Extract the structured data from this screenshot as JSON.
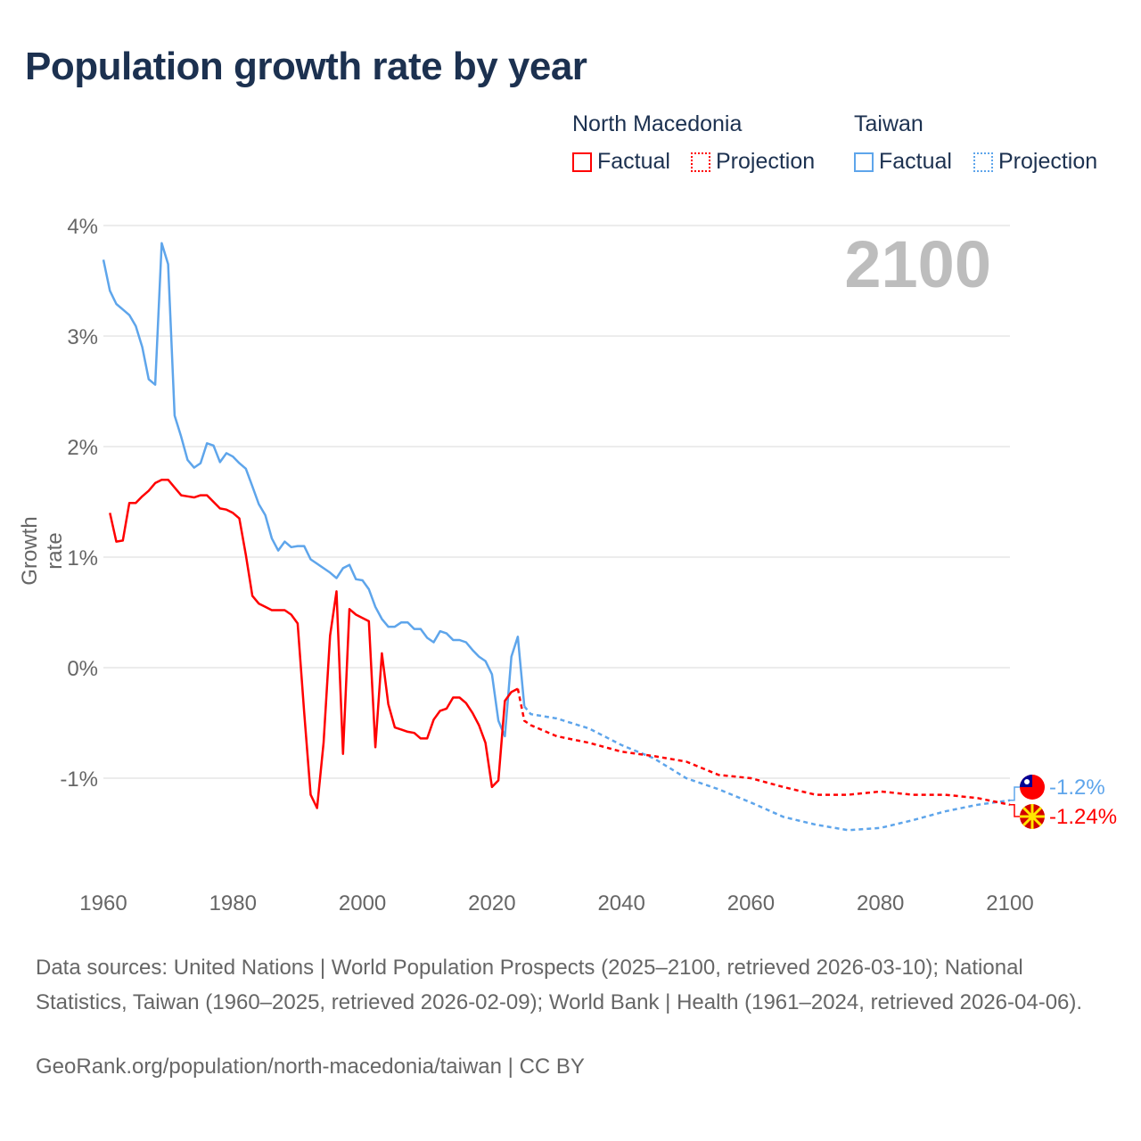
{
  "title": "Population growth rate by year",
  "legend": {
    "groups": [
      {
        "country": "North Macedonia",
        "factual": "Factual",
        "projection": "Projection",
        "color": "#ff0000"
      },
      {
        "country": "Taiwan",
        "factual": "Factual",
        "projection": "Projection",
        "color": "#5ea5eb"
      }
    ]
  },
  "footer": {
    "sources": "Data sources: United Nations | World Population Prospects (2025–2100, retrieved 2026-03-10); National Statistics, Taiwan (1960–2025, retrieved 2026-02-09); World Bank | Health (1961–2024, retrieved 2026-04-06).",
    "credit": "GeoRank.org/population/north-macedonia/taiwan | CC BY"
  },
  "chart_data": {
    "type": "line",
    "title": "Population growth rate by year",
    "ylabel": "Growth rate",
    "xlabel": "",
    "year_watermark": "2100",
    "xlim": [
      1960,
      2100
    ],
    "ylim": [
      -1.9,
      4.0
    ],
    "xticks": [
      1960,
      1980,
      2000,
      2020,
      2040,
      2060,
      2080,
      2100
    ],
    "yticks": [
      {
        "v": 4,
        "label": "4%"
      },
      {
        "v": 3,
        "label": "3%"
      },
      {
        "v": 2,
        "label": "2%"
      },
      {
        "v": 1,
        "label": "1%"
      },
      {
        "v": 0,
        "label": "0%"
      },
      {
        "v": -1,
        "label": "-1%"
      }
    ],
    "grid": true,
    "series": [
      {
        "name": "North Macedonia",
        "color": "#ff0000",
        "end_label": "-1.24%",
        "factual": {
          "x": [
            1961,
            1962,
            1963,
            1964,
            1965,
            1966,
            1967,
            1968,
            1969,
            1970,
            1971,
            1972,
            1973,
            1974,
            1975,
            1976,
            1977,
            1978,
            1979,
            1980,
            1981,
            1982,
            1983,
            1984,
            1985,
            1986,
            1987,
            1988,
            1989,
            1990,
            1991,
            1992,
            1993,
            1994,
            1995,
            1996,
            1997,
            1998,
            1999,
            2000,
            2001,
            2002,
            2003,
            2004,
            2005,
            2006,
            2007,
            2008,
            2009,
            2010,
            2011,
            2012,
            2013,
            2014,
            2015,
            2016,
            2017,
            2018,
            2019,
            2020,
            2021,
            2022,
            2023,
            2024
          ],
          "y": [
            1.4,
            1.14,
            1.15,
            1.49,
            1.49,
            1.55,
            1.6,
            1.67,
            1.7,
            1.7,
            1.63,
            1.56,
            1.55,
            1.54,
            1.56,
            1.56,
            1.5,
            1.44,
            1.43,
            1.4,
            1.35,
            1.02,
            0.65,
            0.58,
            0.55,
            0.52,
            0.52,
            0.52,
            0.48,
            0.4,
            -0.4,
            -1.15,
            -1.27,
            -0.68,
            0.29,
            0.69,
            -0.78,
            0.53,
            0.48,
            0.45,
            0.42,
            -0.72,
            0.13,
            -0.33,
            -0.54,
            -0.56,
            -0.58,
            -0.59,
            -0.64,
            -0.64,
            -0.47,
            -0.39,
            -0.37,
            -0.27,
            -0.27,
            -0.32,
            -0.41,
            -0.52,
            -0.68,
            -1.08,
            -1.02,
            -0.3,
            -0.22,
            -0.19
          ]
        },
        "projection": {
          "x": [
            2024,
            2025,
            2026,
            2030,
            2035,
            2040,
            2045,
            2050,
            2055,
            2060,
            2065,
            2070,
            2075,
            2080,
            2085,
            2090,
            2095,
            2100
          ],
          "y": [
            -0.19,
            -0.48,
            -0.52,
            -0.62,
            -0.68,
            -0.76,
            -0.8,
            -0.85,
            -0.97,
            -1.0,
            -1.08,
            -1.15,
            -1.15,
            -1.12,
            -1.15,
            -1.15,
            -1.18,
            -1.24
          ]
        }
      },
      {
        "name": "Taiwan",
        "color": "#5ea5eb",
        "end_label": "-1.2%",
        "factual": {
          "x": [
            1960,
            1961,
            1962,
            1963,
            1964,
            1965,
            1966,
            1967,
            1968,
            1969,
            1970,
            1971,
            1972,
            1973,
            1974,
            1975,
            1976,
            1977,
            1978,
            1979,
            1980,
            1981,
            1982,
            1983,
            1984,
            1985,
            1986,
            1987,
            1988,
            1989,
            1990,
            1991,
            1992,
            1993,
            1994,
            1995,
            1996,
            1997,
            1998,
            1999,
            2000,
            2001,
            2002,
            2003,
            2004,
            2005,
            2006,
            2007,
            2008,
            2009,
            2010,
            2011,
            2012,
            2013,
            2014,
            2015,
            2016,
            2017,
            2018,
            2019,
            2020,
            2021,
            2022,
            2023,
            2024,
            2025
          ],
          "y": [
            3.69,
            3.41,
            3.29,
            3.24,
            3.19,
            3.09,
            2.9,
            2.61,
            2.56,
            3.84,
            3.65,
            2.28,
            2.09,
            1.88,
            1.81,
            1.85,
            2.03,
            2.01,
            1.86,
            1.94,
            1.91,
            1.85,
            1.8,
            1.64,
            1.48,
            1.38,
            1.17,
            1.06,
            1.14,
            1.09,
            1.1,
            1.1,
            0.98,
            0.94,
            0.9,
            0.86,
            0.81,
            0.9,
            0.93,
            0.8,
            0.79,
            0.71,
            0.55,
            0.44,
            0.37,
            0.37,
            0.41,
            0.41,
            0.35,
            0.35,
            0.27,
            0.23,
            0.33,
            0.31,
            0.25,
            0.25,
            0.23,
            0.16,
            0.1,
            0.06,
            -0.06,
            -0.48,
            -0.62,
            0.1,
            0.28,
            -0.35
          ]
        },
        "projection": {
          "x": [
            2025,
            2026,
            2030,
            2035,
            2040,
            2045,
            2050,
            2055,
            2060,
            2065,
            2070,
            2075,
            2080,
            2085,
            2090,
            2095,
            2100
          ],
          "y": [
            -0.35,
            -0.42,
            -0.46,
            -0.55,
            -0.7,
            -0.82,
            -1.0,
            -1.1,
            -1.22,
            -1.35,
            -1.42,
            -1.47,
            -1.45,
            -1.38,
            -1.3,
            -1.24,
            -1.2
          ]
        }
      }
    ]
  }
}
